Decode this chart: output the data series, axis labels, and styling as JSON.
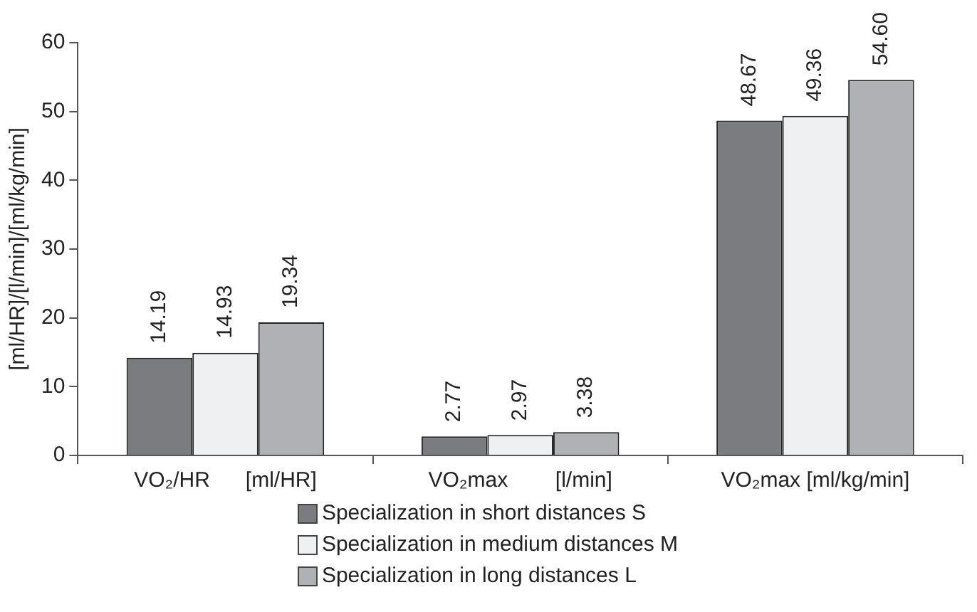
{
  "chart_data": {
    "type": "bar",
    "ylabel": "[ml/HR]/[l/min]/[ml/kg/min]",
    "categories": [
      "VO₂/HR      [ml/HR]",
      "VO₂max        [l/min]",
      "VO₂max [ml/kg/min]"
    ],
    "series": [
      {
        "name": "Specialization in short distances S",
        "color": "#7b7c80",
        "values": [
          14.19,
          2.77,
          48.67
        ],
        "value_labels": [
          "14.19",
          "2.77",
          "48.67"
        ]
      },
      {
        "name": "Specialization in medium distances M",
        "color": "#eff0f2",
        "values": [
          14.93,
          2.97,
          49.36
        ],
        "value_labels": [
          "14.93",
          "2.97",
          "49.36"
        ]
      },
      {
        "name": "Specialization in long distances L",
        "color": "#b0b1b5",
        "values": [
          19.34,
          3.38,
          54.6
        ],
        "value_labels": [
          "19.34",
          "3.38",
          "54.60"
        ]
      }
    ],
    "ylim": [
      0,
      60
    ],
    "yticks": [
      0,
      10,
      20,
      30,
      40,
      50,
      60
    ],
    "grid": false,
    "legend": "bottom"
  }
}
